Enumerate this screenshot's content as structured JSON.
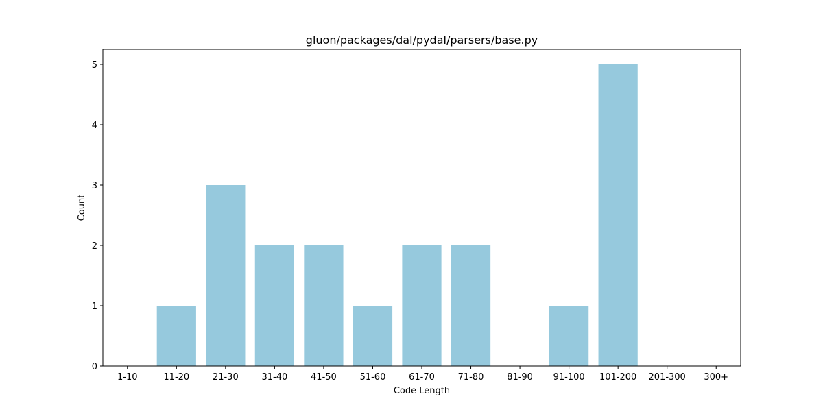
{
  "chart_data": {
    "type": "bar",
    "title": "gluon/packages/dal/pydal/parsers/base.py",
    "xlabel": "Code Length",
    "ylabel": "Count",
    "categories": [
      "1-10",
      "11-20",
      "21-30",
      "31-40",
      "41-50",
      "51-60",
      "61-70",
      "71-80",
      "81-90",
      "91-100",
      "101-200",
      "201-300",
      "300+"
    ],
    "values": [
      0,
      1,
      3,
      2,
      2,
      1,
      2,
      2,
      0,
      1,
      5,
      0,
      0
    ],
    "ylim": [
      0,
      5.25
    ],
    "yticks": [
      0,
      1,
      2,
      3,
      4,
      5
    ],
    "grid": false,
    "legend": "none",
    "bar_color": "#96c9dd"
  }
}
